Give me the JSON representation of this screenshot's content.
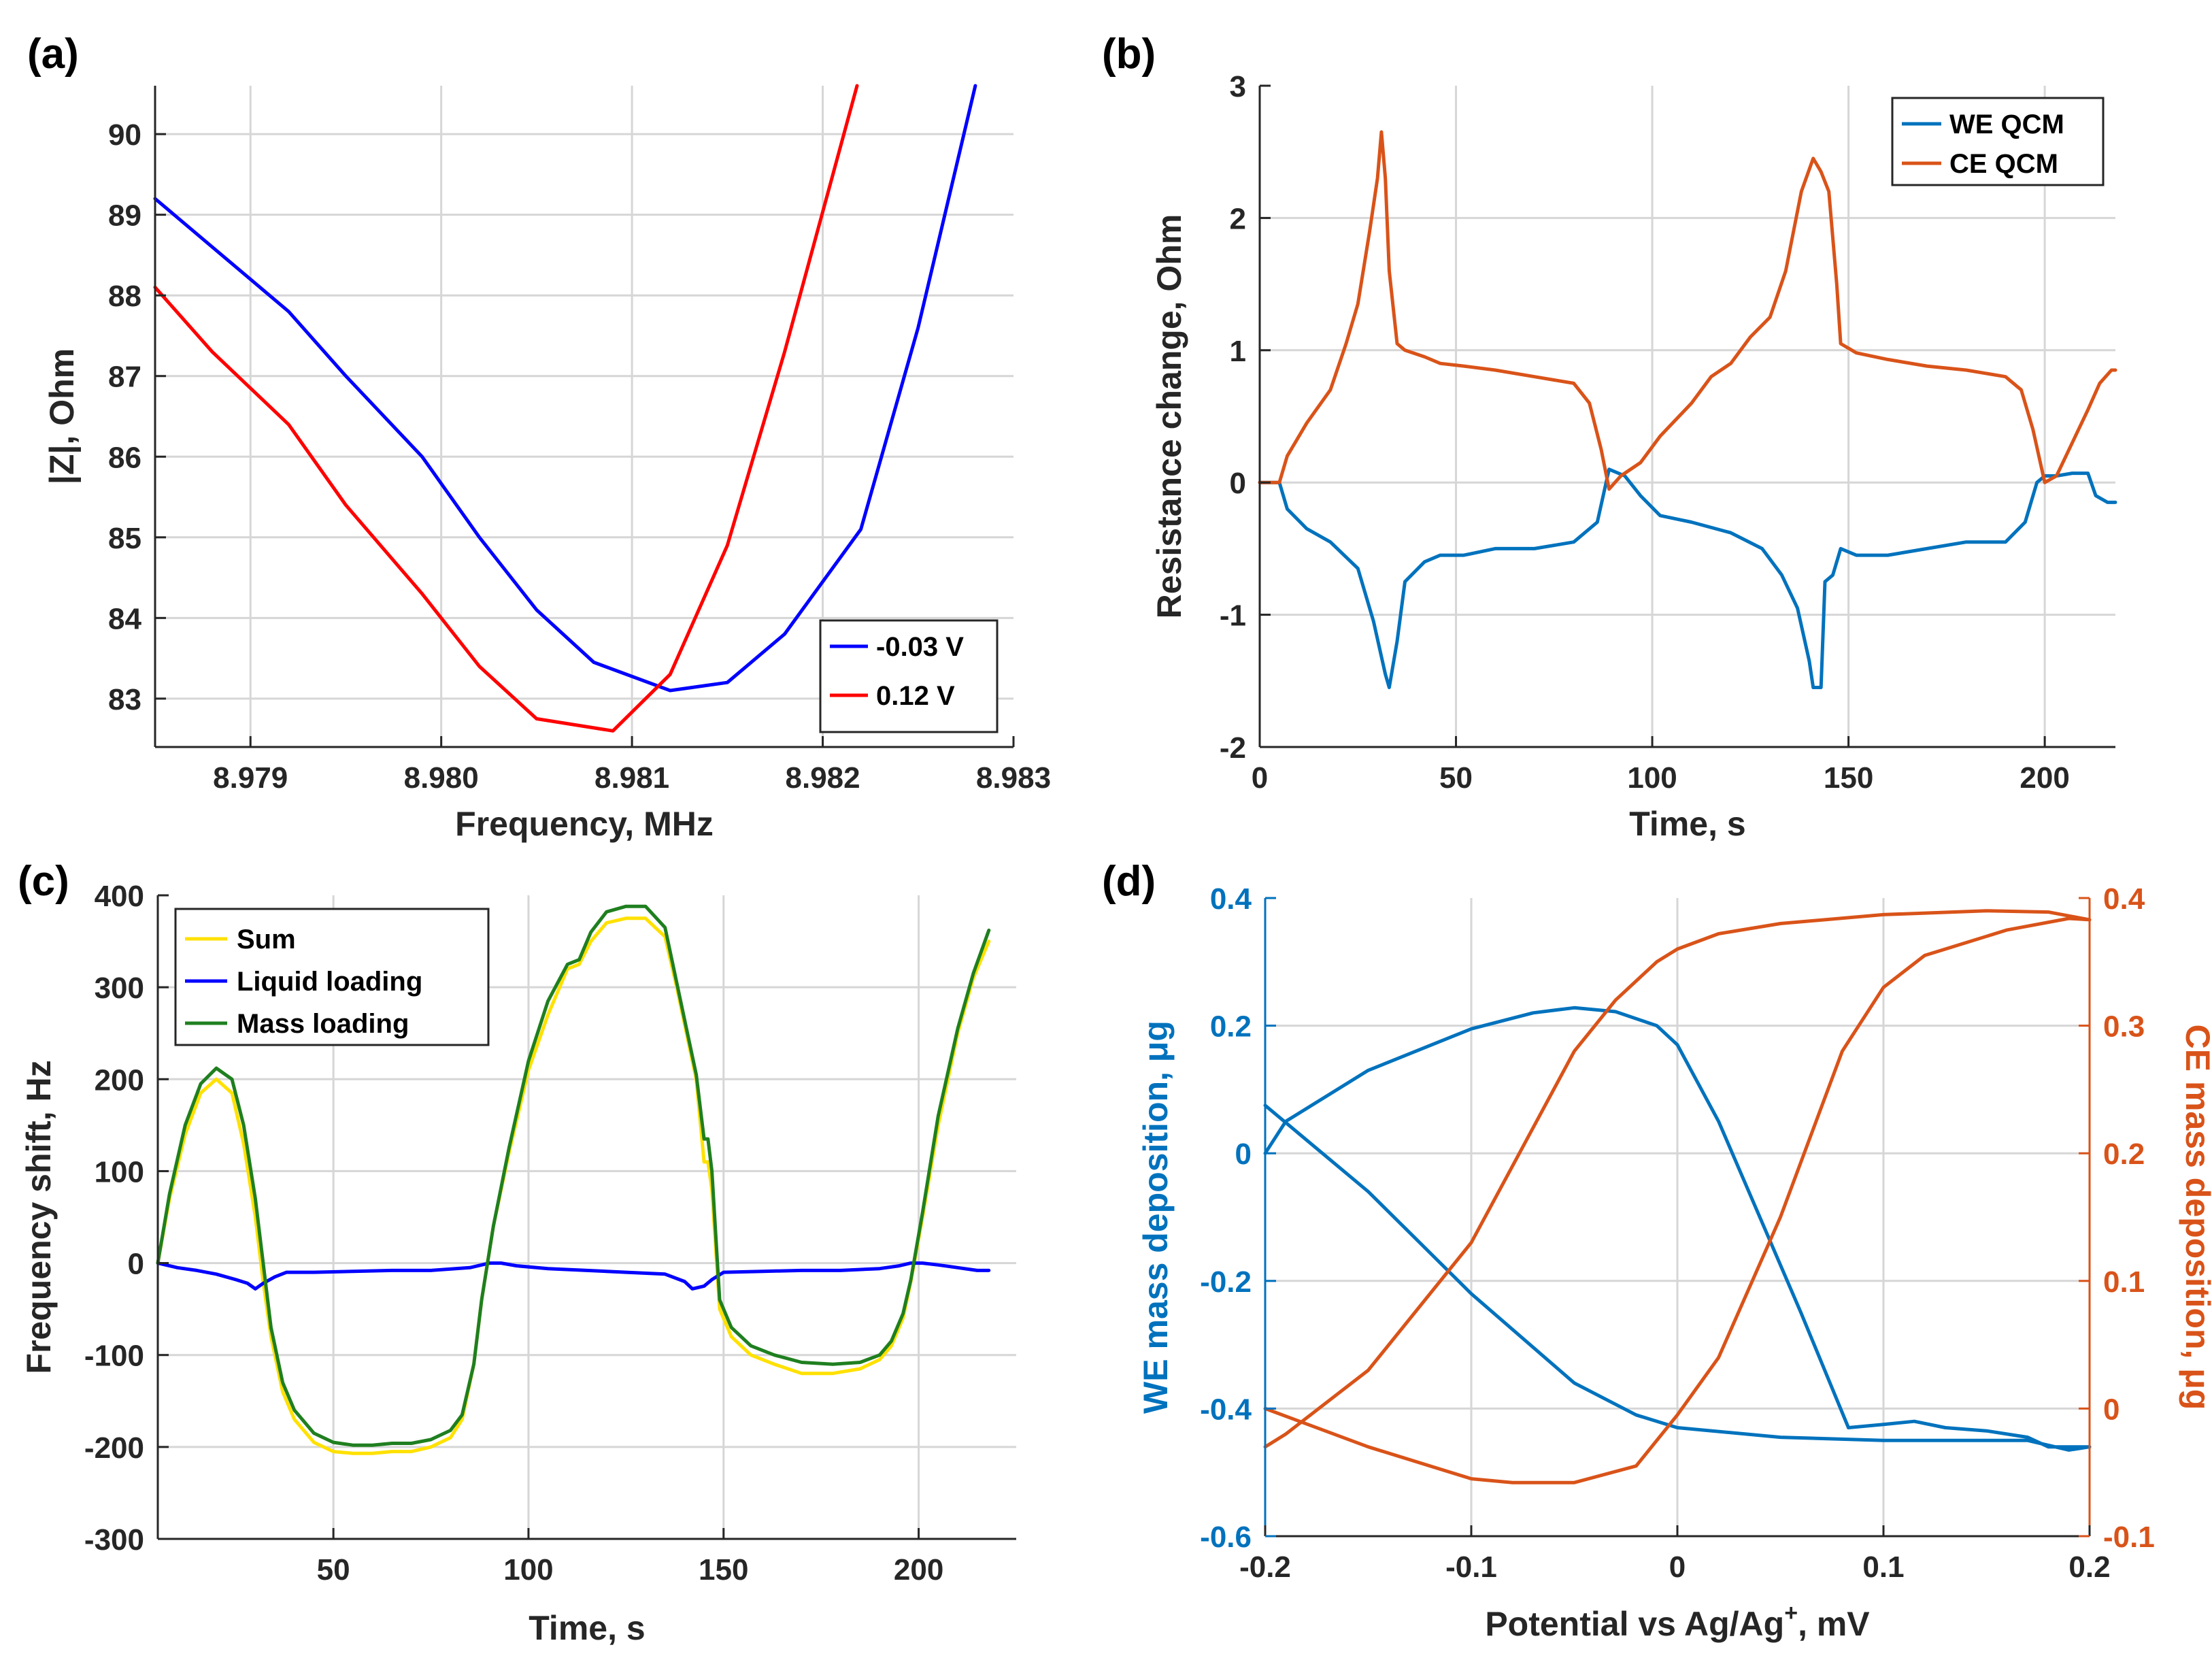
{
  "colors": {
    "blue_a": "#0000ff",
    "red_a": "#ff0000",
    "matlab_blue": "#0072bd",
    "matlab_orange": "#d95319",
    "yellow": "#ffe100",
    "green": "#1f7f1f",
    "grid": "#d6d6d6",
    "axis": "#262626"
  },
  "chart_data": [
    {
      "panel": "(a)",
      "type": "line",
      "xlabel": "Frequency, MHz",
      "ylabel": "|Z|, Ohm",
      "xlim": [
        8.9785,
        8.983
      ],
      "ylim": [
        82.4,
        90.6
      ],
      "xticks": [
        8.979,
        8.98,
        8.981,
        8.982,
        8.983
      ],
      "xtick_labels": [
        "8.979",
        "8.980",
        "8.981",
        "8.982",
        "8.983"
      ],
      "yticks": [
        83,
        84,
        85,
        86,
        87,
        88,
        89,
        90
      ],
      "ytick_labels": [
        "83",
        "84",
        "85",
        "86",
        "87",
        "88",
        "89",
        "90"
      ],
      "grid": true,
      "legend_position": "bottom-right",
      "series": [
        {
          "name": "-0.03 V",
          "color": "#0000ff",
          "x": [
            8.9785,
            8.9788,
            8.9792,
            8.9795,
            8.9799,
            8.9802,
            8.9805,
            8.9808,
            8.9812,
            8.9815,
            8.9818,
            8.9822,
            8.9825,
            8.9828
          ],
          "y": [
            89.2,
            88.6,
            87.8,
            87.0,
            86.0,
            85.0,
            84.1,
            83.45,
            83.1,
            83.2,
            83.8,
            85.1,
            87.6,
            90.6
          ]
        },
        {
          "name": "0.12 V",
          "color": "#ff0000",
          "x": [
            8.9785,
            8.9788,
            8.9792,
            8.9795,
            8.9799,
            8.9802,
            8.9805,
            8.9809,
            8.9812,
            8.9815,
            8.9818,
            8.98218
          ],
          "y": [
            88.1,
            87.3,
            86.4,
            85.4,
            84.3,
            83.4,
            82.75,
            82.6,
            83.3,
            84.9,
            87.3,
            90.6
          ]
        }
      ]
    },
    {
      "panel": "(b)",
      "type": "line",
      "xlabel": "Time, s",
      "ylabel": "Resistance change, Ohm",
      "xlim": [
        0,
        218
      ],
      "ylim": [
        -2,
        3
      ],
      "xticks": [
        0,
        50,
        100,
        150,
        200
      ],
      "xtick_labels": [
        "0",
        "50",
        "100",
        "150",
        "200"
      ],
      "yticks": [
        -2,
        -1,
        0,
        1,
        2,
        3
      ],
      "ytick_labels": [
        "-2",
        "-1",
        "0",
        "1",
        "2",
        "3"
      ],
      "grid": true,
      "legend_position": "top-right",
      "series": [
        {
          "name": "WE QCM",
          "color": "#0072bd",
          "x": [
            0,
            5,
            7,
            12,
            18,
            25,
            29,
            32,
            33,
            35,
            37,
            42,
            46,
            52,
            60,
            70,
            80,
            86,
            89,
            93,
            97,
            102,
            110,
            120,
            128,
            133,
            137,
            140,
            141,
            143,
            144,
            146,
            148,
            152,
            160,
            170,
            180,
            190,
            195,
            198,
            200,
            203,
            207,
            211,
            213,
            216,
            218
          ],
          "y": [
            0,
            0,
            -0.2,
            -0.35,
            -0.45,
            -0.65,
            -1.05,
            -1.45,
            -1.55,
            -1.2,
            -0.75,
            -0.6,
            -0.55,
            -0.55,
            -0.5,
            -0.5,
            -0.45,
            -0.3,
            0.1,
            0.05,
            -0.1,
            -0.25,
            -0.3,
            -0.38,
            -0.5,
            -0.7,
            -0.95,
            -1.35,
            -1.55,
            -1.55,
            -0.75,
            -0.7,
            -0.5,
            -0.55,
            -0.55,
            -0.5,
            -0.45,
            -0.45,
            -0.3,
            0,
            0.05,
            0.05,
            0.07,
            0.07,
            -0.1,
            -0.15,
            -0.15
          ]
        },
        {
          "name": "CE QCM",
          "color": "#d95319",
          "x": [
            0,
            5,
            7,
            12,
            18,
            22,
            25,
            28,
            30,
            31,
            32,
            33,
            35,
            37,
            42,
            46,
            52,
            60,
            70,
            80,
            84,
            87,
            89,
            92,
            97,
            102,
            110,
            115,
            120,
            125,
            130,
            134,
            138,
            141,
            143,
            145,
            147,
            148,
            152,
            160,
            170,
            180,
            190,
            194,
            197,
            200,
            203,
            207,
            211,
            214,
            217,
            218
          ],
          "y": [
            0,
            0,
            0.2,
            0.45,
            0.7,
            1.05,
            1.35,
            1.9,
            2.3,
            2.65,
            2.3,
            1.6,
            1.05,
            1.0,
            0.95,
            0.9,
            0.88,
            0.85,
            0.8,
            0.75,
            0.6,
            0.25,
            -0.05,
            0.05,
            0.15,
            0.35,
            0.6,
            0.8,
            0.9,
            1.1,
            1.25,
            1.6,
            2.2,
            2.45,
            2.35,
            2.2,
            1.5,
            1.05,
            0.98,
            0.93,
            0.88,
            0.85,
            0.8,
            0.7,
            0.4,
            0.0,
            0.05,
            0.3,
            0.55,
            0.75,
            0.85,
            0.85
          ]
        }
      ]
    },
    {
      "panel": "(c)",
      "type": "line",
      "xlabel": "Time, s",
      "ylabel": "Frequency shift, Hz",
      "xlim": [
        5,
        225
      ],
      "ylim": [
        -300,
        400
      ],
      "xticks": [
        50,
        100,
        150,
        200
      ],
      "xtick_labels": [
        "50",
        "100",
        "150",
        "200"
      ],
      "yticks": [
        -300,
        -200,
        -100,
        0,
        100,
        200,
        300,
        400
      ],
      "ytick_labels": [
        "-300",
        "-200",
        "-100",
        "0",
        "100",
        "200",
        "300",
        "400"
      ],
      "grid": true,
      "legend_position": "top-left",
      "series": [
        {
          "name": "Sum",
          "color": "#ffe100",
          "x": [
            5,
            8,
            12,
            16,
            20,
            24,
            27,
            30,
            32,
            34,
            37,
            40,
            45,
            50,
            55,
            60,
            65,
            70,
            75,
            80,
            83,
            86,
            88,
            91,
            95,
            100,
            105,
            110,
            113,
            116,
            120,
            125,
            130,
            135,
            138,
            141,
            143,
            145,
            146,
            147,
            149,
            152,
            157,
            163,
            170,
            178,
            185,
            190,
            193,
            196,
            198,
            201,
            205,
            210,
            214,
            218
          ],
          "y": [
            0,
            70,
            140,
            185,
            200,
            185,
            130,
            50,
            -20,
            -80,
            -140,
            -170,
            -195,
            -205,
            -207,
            -207,
            -205,
            -205,
            -200,
            -190,
            -170,
            -110,
            -40,
            40,
            120,
            210,
            270,
            320,
            325,
            350,
            370,
            375,
            375,
            355,
            300,
            240,
            200,
            110,
            110,
            80,
            -50,
            -80,
            -100,
            -110,
            -120,
            -120,
            -115,
            -105,
            -90,
            -60,
            -20,
            50,
            150,
            250,
            310,
            350
          ]
        },
        {
          "name": "Liquid loading",
          "color": "#0000ff",
          "x": [
            5,
            10,
            15,
            20,
            25,
            28,
            30,
            32,
            35,
            38,
            45,
            55,
            65,
            75,
            85,
            90,
            93,
            97,
            105,
            115,
            125,
            135,
            140,
            142,
            145,
            147,
            150,
            160,
            170,
            180,
            190,
            195,
            198,
            201,
            205,
            210,
            215,
            218
          ],
          "y": [
            0,
            -5,
            -8,
            -12,
            -18,
            -22,
            -28,
            -22,
            -15,
            -10,
            -10,
            -9,
            -8,
            -8,
            -5,
            0,
            0,
            -3,
            -6,
            -8,
            -10,
            -12,
            -20,
            -28,
            -25,
            -18,
            -10,
            -9,
            -8,
            -8,
            -6,
            -3,
            0,
            0,
            -2,
            -5,
            -8,
            -8
          ]
        },
        {
          "name": "Mass loading",
          "color": "#1f7f1f",
          "x": [
            5,
            8,
            12,
            16,
            20,
            24,
            27,
            30,
            32,
            34,
            37,
            40,
            45,
            50,
            55,
            60,
            65,
            70,
            75,
            80,
            83,
            86,
            88,
            91,
            95,
            100,
            105,
            110,
            113,
            116,
            120,
            125,
            130,
            135,
            138,
            141,
            143,
            145,
            146,
            147,
            149,
            152,
            157,
            163,
            170,
            178,
            185,
            190,
            193,
            196,
            198,
            201,
            205,
            210,
            214,
            218
          ],
          "y": [
            0,
            75,
            150,
            195,
            212,
            200,
            150,
            70,
            0,
            -70,
            -130,
            -160,
            -185,
            -195,
            -198,
            -198,
            -196,
            -196,
            -192,
            -182,
            -165,
            -110,
            -40,
            40,
            125,
            220,
            285,
            325,
            330,
            360,
            382,
            388,
            388,
            365,
            305,
            245,
            205,
            135,
            135,
            100,
            -40,
            -70,
            -90,
            -100,
            -108,
            -110,
            -108,
            -100,
            -85,
            -55,
            -18,
            55,
            160,
            255,
            315,
            362
          ]
        }
      ]
    },
    {
      "panel": "(d)",
      "type": "line",
      "xlabel": "Potential vs Ag/Ag",
      "xlabel_sup": "+",
      "xlabel_tail": ", mV",
      "ylabel_left": "WE mass deposition, μg",
      "ylabel_right": "CE mass deposition, μg",
      "xlim": [
        -0.2,
        0.2
      ],
      "ylim_left": [
        -0.6,
        0.4
      ],
      "ylim_right": [
        -0.1,
        0.4
      ],
      "xticks": [
        -0.2,
        -0.1,
        0,
        0.1,
        0.2
      ],
      "xtick_labels": [
        "-0.2",
        "-0.1",
        "0",
        "0.1",
        "0.2"
      ],
      "yticks_left": [
        -0.6,
        -0.4,
        -0.2,
        0,
        0.2,
        0.4
      ],
      "ytick_labels_left": [
        "-0.6",
        "-0.4",
        "-0.2",
        "0",
        "0.2",
        "0.4"
      ],
      "yticks_right": [
        -0.1,
        0,
        0.1,
        0.2,
        0.3,
        0.4
      ],
      "ytick_labels_right": [
        "-0.1",
        "0",
        "0.1",
        "0.2",
        "0.3",
        "0.4"
      ],
      "grid": true,
      "series": [
        {
          "name": "WE mass deposition",
          "axis": "left",
          "color": "#0072bd",
          "x": [
            -0.2,
            -0.19,
            -0.15,
            -0.1,
            -0.07,
            -0.05,
            -0.03,
            -0.01,
            0.0,
            0.02,
            0.04,
            0.06,
            0.083,
            0.1,
            0.115,
            0.13,
            0.15,
            0.17,
            0.18,
            0.2,
            0.19,
            0.17,
            0.1,
            0.05,
            0.0,
            -0.02,
            -0.05,
            -0.1,
            -0.15,
            -0.2
          ],
          "y": [
            0.0,
            0.05,
            0.13,
            0.195,
            0.22,
            0.228,
            0.222,
            0.2,
            0.17,
            0.05,
            -0.1,
            -0.25,
            -0.43,
            -0.425,
            -0.42,
            -0.43,
            -0.435,
            -0.445,
            -0.46,
            -0.46,
            -0.465,
            -0.45,
            -0.45,
            -0.445,
            -0.43,
            -0.41,
            -0.36,
            -0.22,
            -0.06,
            0.075
          ]
        },
        {
          "name": "CE mass deposition",
          "axis": "right",
          "color": "#d95319",
          "x": [
            -0.2,
            -0.19,
            -0.15,
            -0.1,
            -0.07,
            -0.05,
            -0.03,
            -0.01,
            0.0,
            0.02,
            0.05,
            0.1,
            0.15,
            0.18,
            0.2,
            0.19,
            0.16,
            0.12,
            0.1,
            0.08,
            0.05,
            0.02,
            0.0,
            -0.02,
            -0.05,
            -0.08,
            -0.1,
            -0.15,
            -0.2
          ],
          "y": [
            -0.03,
            -0.02,
            0.03,
            0.13,
            0.22,
            0.28,
            0.32,
            0.35,
            0.36,
            0.372,
            0.38,
            0.387,
            0.39,
            0.389,
            0.383,
            0.384,
            0.375,
            0.355,
            0.33,
            0.28,
            0.15,
            0.04,
            -0.005,
            -0.045,
            -0.058,
            -0.058,
            -0.055,
            -0.03,
            0.0
          ]
        }
      ]
    }
  ]
}
